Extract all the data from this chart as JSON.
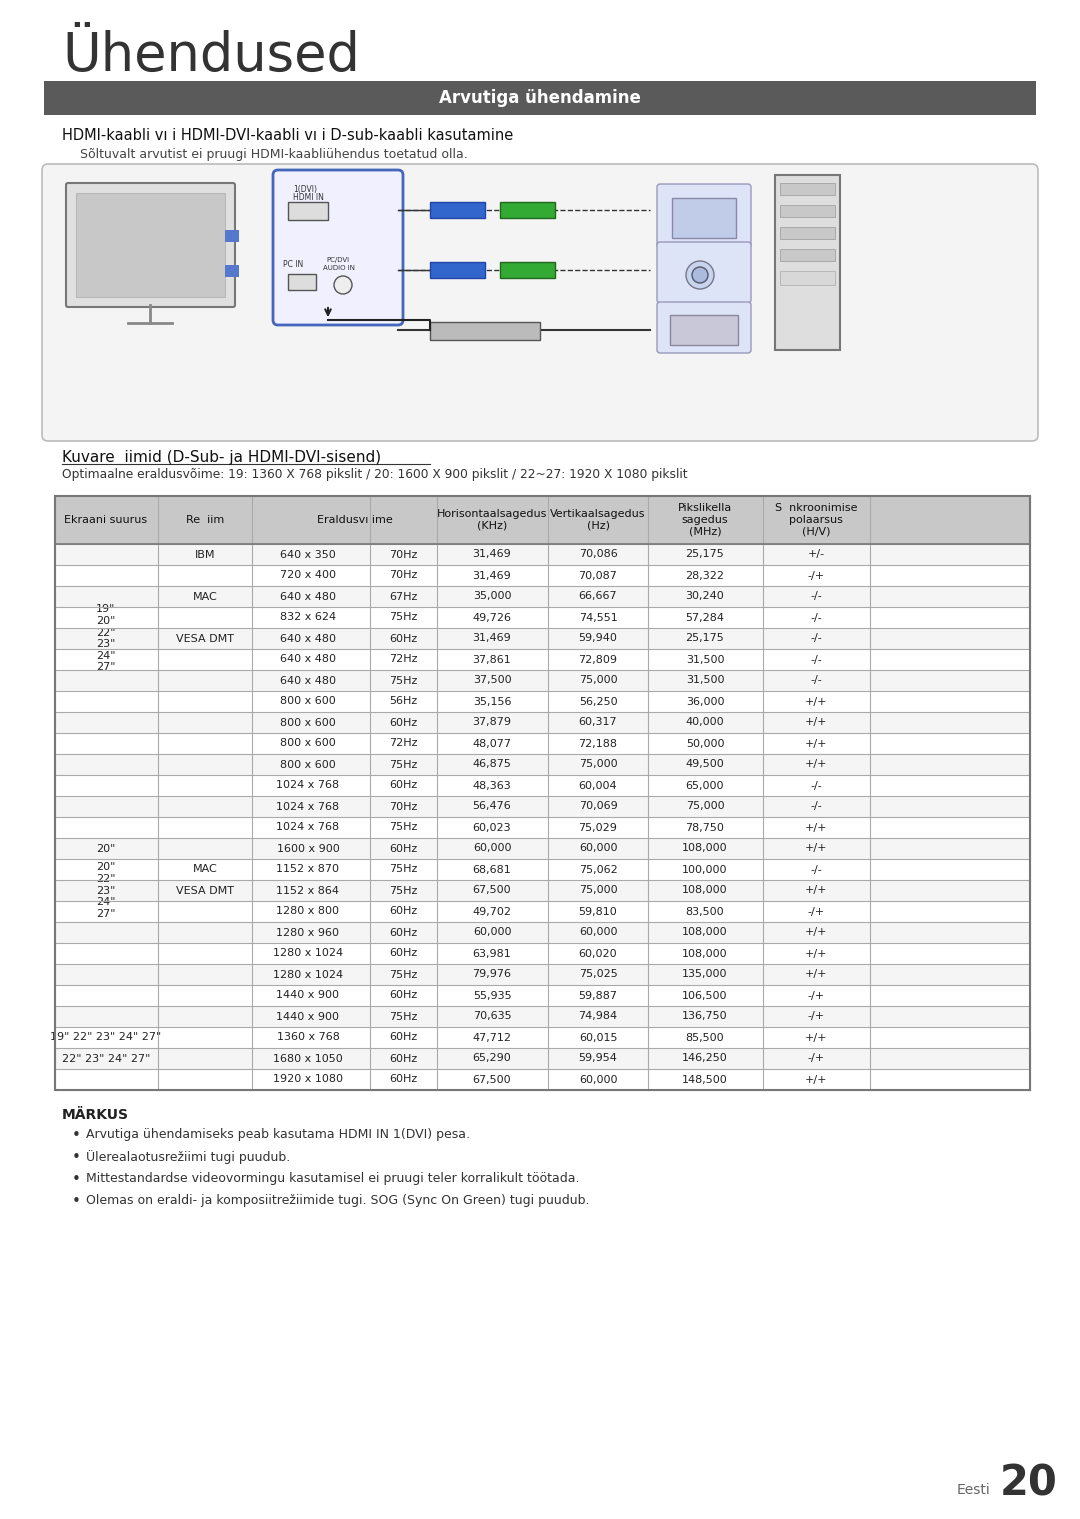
{
  "page_title": "Ühendused",
  "section_header": "Arvutiga ühendamine",
  "subsection1_title": "HDMI-kaabli vı i HDMI-DVI-kaabli vı i D-sub-kaabli kasutamine",
  "subsection1_note": "Sõltuvalt arvutist ei pruugi HDMI-kaabliühendus toetatud olla.",
  "subsection2_title": "Kuvare  iimid (D-Sub- ja HDMI-DVI-sisend)",
  "subsection2_note": "Optimaalne eraldusvõime: 19: 1360 X 768 pikslit / 20: 1600 X 900 pikslit / 22~27: 1920 X 1080 pikslit",
  "table_data": [
    [
      "",
      "IBM",
      "640 x 350",
      "70Hz",
      "31,469",
      "70,086",
      "25,175",
      "+/-"
    ],
    [
      "",
      "",
      "720 x 400",
      "70Hz",
      "31,469",
      "70,087",
      "28,322",
      "-/+"
    ],
    [
      "",
      "MAC",
      "640 x 480",
      "67Hz",
      "35,000",
      "66,667",
      "30,240",
      "-/-"
    ],
    [
      "",
      "",
      "832 x 624",
      "75Hz",
      "49,726",
      "74,551",
      "57,284",
      "-/-"
    ],
    [
      "19\"\n20\"\n22\"\n23\"\n24\"\n27\"",
      "VESA DMT",
      "640 x 480",
      "60Hz",
      "31,469",
      "59,940",
      "25,175",
      "-/-"
    ],
    [
      "",
      "",
      "640 x 480",
      "72Hz",
      "37,861",
      "72,809",
      "31,500",
      "-/-"
    ],
    [
      "",
      "",
      "640 x 480",
      "75Hz",
      "37,500",
      "75,000",
      "31,500",
      "-/-"
    ],
    [
      "",
      "",
      "800 x 600",
      "56Hz",
      "35,156",
      "56,250",
      "36,000",
      "+/+"
    ],
    [
      "",
      "",
      "800 x 600",
      "60Hz",
      "37,879",
      "60,317",
      "40,000",
      "+/+"
    ],
    [
      "",
      "",
      "800 x 600",
      "72Hz",
      "48,077",
      "72,188",
      "50,000",
      "+/+"
    ],
    [
      "",
      "",
      "800 x 600",
      "75Hz",
      "46,875",
      "75,000",
      "49,500",
      "+/+"
    ],
    [
      "",
      "",
      "1024 x 768",
      "60Hz",
      "48,363",
      "60,004",
      "65,000",
      "-/-"
    ],
    [
      "",
      "",
      "1024 x 768",
      "70Hz",
      "56,476",
      "70,069",
      "75,000",
      "-/-"
    ],
    [
      "",
      "",
      "1024 x 768",
      "75Hz",
      "60,023",
      "75,029",
      "78,750",
      "+/+"
    ],
    [
      "20\"",
      "",
      "1600 x 900",
      "60Hz",
      "60,000",
      "60,000",
      "108,000",
      "+/+"
    ],
    [
      "",
      "MAC",
      "1152 x 870",
      "75Hz",
      "68,681",
      "75,062",
      "100,000",
      "-/-"
    ],
    [
      "20\"\n22\"\n23\"\n24\"\n27\"",
      "VESA DMT",
      "1152 x 864",
      "75Hz",
      "67,500",
      "75,000",
      "108,000",
      "+/+"
    ],
    [
      "",
      "",
      "1280 x 800",
      "60Hz",
      "49,702",
      "59,810",
      "83,500",
      "-/+"
    ],
    [
      "",
      "",
      "1280 x 960",
      "60Hz",
      "60,000",
      "60,000",
      "108,000",
      "+/+"
    ],
    [
      "",
      "",
      "1280 x 1024",
      "60Hz",
      "63,981",
      "60,020",
      "108,000",
      "+/+"
    ],
    [
      "",
      "",
      "1280 x 1024",
      "75Hz",
      "79,976",
      "75,025",
      "135,000",
      "+/+"
    ],
    [
      "",
      "",
      "1440 x 900",
      "60Hz",
      "55,935",
      "59,887",
      "106,500",
      "-/+"
    ],
    [
      "",
      "",
      "1440 x 900",
      "75Hz",
      "70,635",
      "74,984",
      "136,750",
      "-/+"
    ],
    [
      "19\" 22\" 23\" 24\" 27\"",
      "",
      "1360 x 768",
      "60Hz",
      "47,712",
      "60,015",
      "85,500",
      "+/+"
    ],
    [
      "22\" 23\" 24\" 27\"",
      "",
      "1680 x 1050",
      "60Hz",
      "65,290",
      "59,954",
      "146,250",
      "-/+"
    ],
    [
      "",
      "",
      "1920 x 1080",
      "60Hz",
      "67,500",
      "60,000",
      "148,500",
      "+/+"
    ]
  ],
  "notes_title": "MÄRKUS",
  "notes": [
    "Arvutiga ühendamiseks peab kasutama HDMI IN 1(DVI) pesa.",
    "Ülerealaotusrežiimi tugi puudub.",
    "Mittestandardse videovormingu kasutamisel ei pruugi teler korralikult töötada.",
    "Olemas on eraldi- ja komposiitrežiimide tugi. SOG (Sync On Green) tugi puudub."
  ],
  "page_num": "20",
  "page_lang": "Eesti",
  "bg_color": "#ffffff",
  "header_bg": "#5a5a5a",
  "header_fg": "#ffffff",
  "table_header_bg": "#c8c8c8",
  "table_border": "#888888"
}
